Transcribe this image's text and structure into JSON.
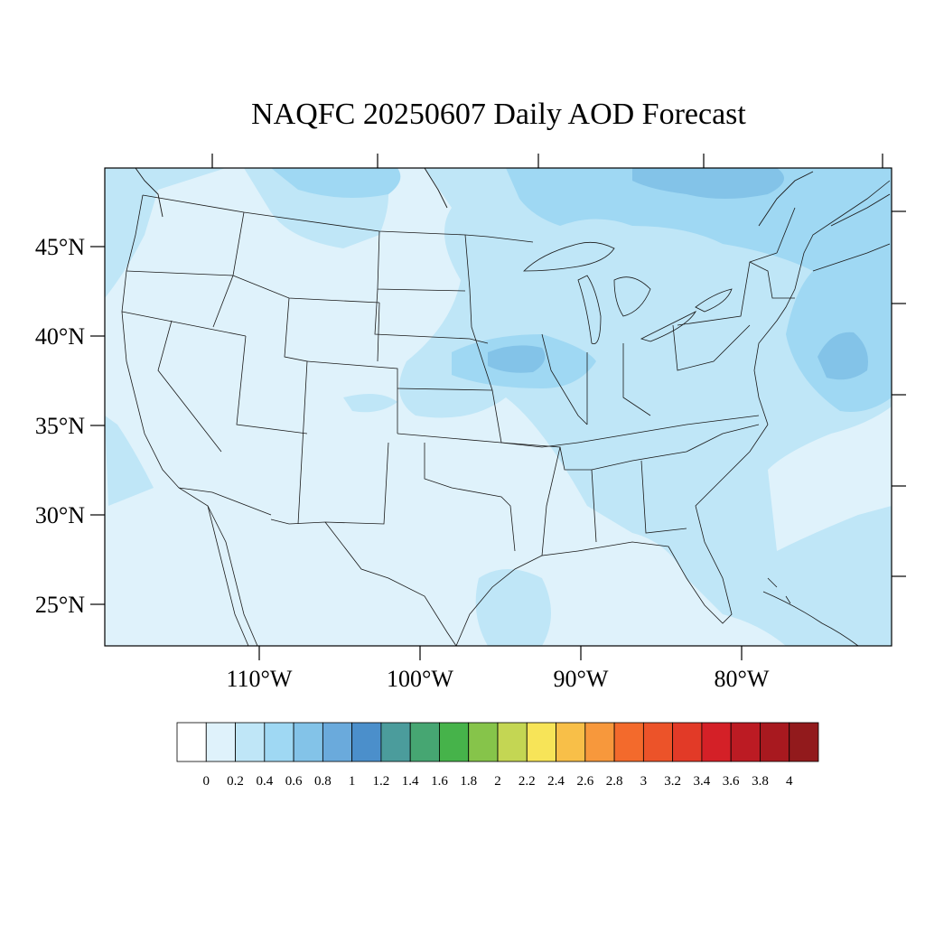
{
  "title": "NAQFC 20250607 Daily AOD Forecast",
  "map": {
    "lat_labels": [
      "45°N",
      "40°N",
      "35°N",
      "30°N",
      "25°N"
    ],
    "lon_labels": [
      "110°W",
      "100°W",
      "90°W",
      "80°W"
    ],
    "colors": {
      "base": "#dff2fb",
      "level_02": "#bfe6f7",
      "level_04": "#9fd8f3",
      "level_06": "#83c3e8",
      "level_08": "#6aaadc",
      "outline": "#1a1a1a"
    }
  },
  "colorbar": {
    "labels": [
      "0",
      "0.2",
      "0.4",
      "0.6",
      "0.8",
      "1",
      "1.2",
      "1.4",
      "1.6",
      "1.8",
      "2",
      "2.2",
      "2.4",
      "2.6",
      "2.8",
      "3",
      "3.2",
      "3.4",
      "3.6",
      "3.8",
      "4"
    ],
    "colors": [
      "#ffffff",
      "#dff2fb",
      "#bfe6f7",
      "#9fd8f3",
      "#83c3e8",
      "#6aaadc",
      "#4b8fcb",
      "#4b9c9c",
      "#46a672",
      "#46b34a",
      "#86c44a",
      "#c4d653",
      "#f7e458",
      "#f8bf48",
      "#f7983c",
      "#f36a2c",
      "#ec5329",
      "#e23a27",
      "#d42027",
      "#bc1b23",
      "#a8191f",
      "#921a1c"
    ]
  }
}
